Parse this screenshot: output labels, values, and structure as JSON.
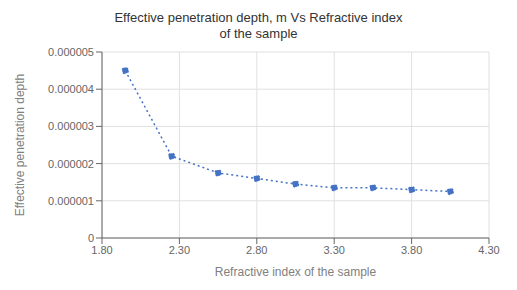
{
  "chart_data": {
    "type": "line",
    "title": "Effective penetration depth, m Vs Refractive index\nof the sample",
    "xlabel": "Refractive index of the  sample",
    "ylabel": "Effective penetration depth",
    "x": [
      1.95,
      2.25,
      2.55,
      2.8,
      3.05,
      3.3,
      3.55,
      3.8,
      4.05
    ],
    "values": [
      4.5e-06,
      2.2e-06,
      1.75e-06,
      1.6e-06,
      1.45e-06,
      1.35e-06,
      1.35e-06,
      1.3e-06,
      1.25e-06
    ],
    "color": "#4472C4",
    "marker": "circle",
    "line_style": "dotted",
    "xlim": [
      1.8,
      4.3
    ],
    "ylim": [
      0,
      5e-06
    ],
    "xticks": [
      {
        "value": 1.8,
        "label": "1.80"
      },
      {
        "value": 2.3,
        "label": "2.30"
      },
      {
        "value": 2.8,
        "label": "2.80"
      },
      {
        "value": 3.3,
        "label": "3.30"
      },
      {
        "value": 3.8,
        "label": "3.80"
      },
      {
        "value": 4.3,
        "label": "4.30"
      }
    ],
    "yticks": [
      0,
      {
        "value": 1e-06,
        "label": "0.000001"
      },
      {
        "value": 2e-06,
        "label": "0.000002"
      },
      {
        "value": 3e-06,
        "label": "0.000003"
      },
      {
        "value": 4e-06,
        "label": "0.000004"
      },
      {
        "value": 5e-06,
        "label": "0.000005"
      }
    ],
    "grid": true
  }
}
